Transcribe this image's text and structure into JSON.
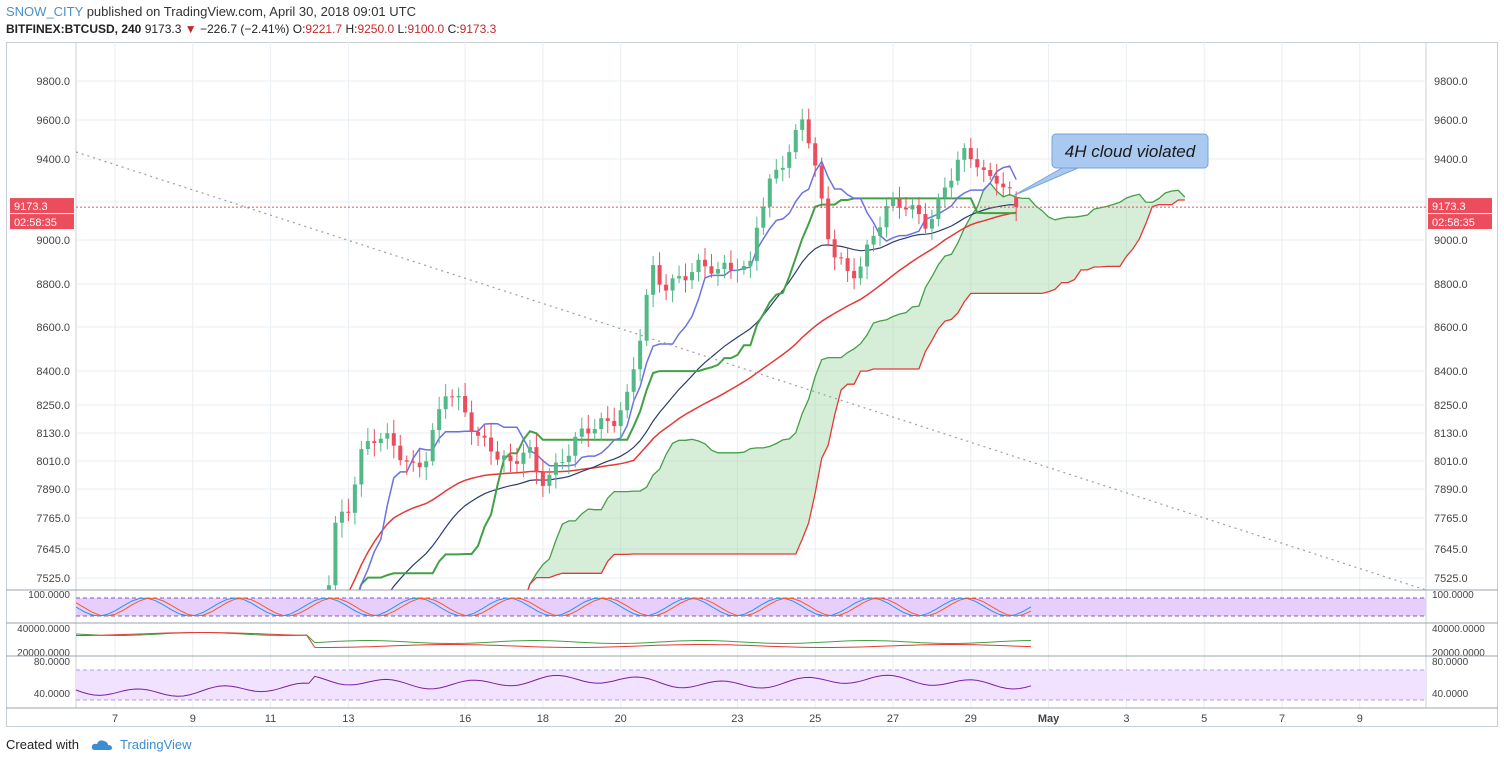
{
  "header": {
    "user": "SNOW_CITY",
    "published": "published on TradingView.com, April 30, 2018 09:01 UTC",
    "symbol": "BITFINEX:BTCUSD, 240",
    "last": "9173.3",
    "change": "−226.7 (−2.41%)",
    "o_label": "O:",
    "o": "9221.7",
    "h_label": "H:",
    "h": "9250.0",
    "l_label": "L:",
    "l": "9100.0",
    "c_label": "C:",
    "c": "9173.3"
  },
  "footer": {
    "created": "Created with",
    "brand": "TradingView"
  },
  "colors": {
    "up": "#53b987",
    "down": "#eb4d5c",
    "blue": "#6b72e0",
    "green": "#43a047",
    "red": "#e53935",
    "purple": "#8e24aa",
    "navy": "#2c3e6b",
    "cloud": "#a5d6a7",
    "grid": "#e8eef2"
  },
  "chart_data": {
    "type": "candlestick",
    "timeframe": "240",
    "y_ticks": [
      7525.0,
      7645.0,
      7765.0,
      7890.0,
      8010.0,
      8130.0,
      8250.0,
      8400.0,
      8600.0,
      8800.0,
      9000.0,
      9200.0,
      9400.0,
      9600.0,
      9800.0
    ],
    "y_tick_labels": [
      "7525.0",
      "7645.0",
      "7765.0",
      "7890.0",
      "8010.0",
      "8130.0",
      "8250.0",
      "8400.0",
      "8600.0",
      "8800.0",
      "9000.0",
      "9200.0",
      "9400.0",
      "9600.0",
      "9800.0"
    ],
    "x_ticks": [
      {
        "day": 7,
        "label": "7"
      },
      {
        "day": 9,
        "label": "9"
      },
      {
        "day": 11,
        "label": "11"
      },
      {
        "day": 13,
        "label": "13"
      },
      {
        "day": 16,
        "label": "16"
      },
      {
        "day": 18,
        "label": "18"
      },
      {
        "day": 20,
        "label": "20"
      },
      {
        "day": 23,
        "label": "23"
      },
      {
        "day": 25,
        "label": "25"
      },
      {
        "day": 27,
        "label": "27"
      },
      {
        "day": 29,
        "label": "29"
      },
      {
        "day": 31,
        "label": "May"
      },
      {
        "day": 33,
        "label": "3"
      },
      {
        "day": 35,
        "label": "5"
      },
      {
        "day": 37,
        "label": "7"
      },
      {
        "day": 39,
        "label": "9"
      }
    ],
    "price_label": "9173.3",
    "countdown_label": "02:58:35",
    "annotation": "4H cloud violated",
    "anchors": [
      [
        12.0,
        7000
      ],
      [
        12.4,
        7300
      ],
      [
        12.6,
        7700
      ],
      [
        13.0,
        7820
      ],
      [
        13.3,
        8050
      ],
      [
        13.6,
        8120
      ],
      [
        14.1,
        8070
      ],
      [
        14.6,
        7980
      ],
      [
        15.0,
        8050
      ],
      [
        15.3,
        8200
      ],
      [
        15.5,
        8300
      ],
      [
        15.9,
        8230
      ],
      [
        16.3,
        8130
      ],
      [
        16.7,
        8080
      ],
      [
        17.2,
        7970
      ],
      [
        17.6,
        8060
      ],
      [
        17.9,
        7930
      ],
      [
        18.3,
        7990
      ],
      [
        18.8,
        8080
      ],
      [
        19.4,
        8160
      ],
      [
        19.8,
        8200
      ],
      [
        20.2,
        8300
      ],
      [
        20.5,
        8550
      ],
      [
        20.8,
        8850
      ],
      [
        21.1,
        8780
      ],
      [
        21.6,
        8860
      ],
      [
        22.0,
        8880
      ],
      [
        22.5,
        8840
      ],
      [
        23.0,
        8900
      ],
      [
        23.3,
        8870
      ],
      [
        23.5,
        9100
      ],
      [
        23.9,
        9300
      ],
      [
        24.3,
        9400
      ],
      [
        24.7,
        9650
      ],
      [
        25.1,
        9280
      ],
      [
        25.4,
        8950
      ],
      [
        25.8,
        8830
      ],
      [
        26.1,
        8850
      ],
      [
        26.5,
        9050
      ],
      [
        26.9,
        9200
      ],
      [
        27.5,
        9140
      ],
      [
        27.9,
        9080
      ],
      [
        28.3,
        9280
      ],
      [
        28.8,
        9420
      ],
      [
        29.1,
        9380
      ],
      [
        29.4,
        9300
      ],
      [
        29.7,
        9330
      ],
      [
        30.0,
        9260
      ],
      [
        30.15,
        9173
      ]
    ],
    "annotation_bubble": "4H cloud violated",
    "indicators": {
      "stoch_rsi": {
        "ticks": [
          100.0
        ],
        "tick_labels": [
          "100.0000"
        ],
        "levels": [
          80,
          20
        ]
      },
      "volume_panel": {
        "ticks": [
          40000.0,
          20000.0
        ],
        "tick_labels": [
          "40000.0000",
          "20000.0000"
        ]
      },
      "rsi": {
        "ticks": [
          80.0,
          40.0
        ],
        "tick_labels": [
          "80.0000",
          "40.0000"
        ],
        "levels": [
          70,
          30
        ]
      }
    }
  }
}
